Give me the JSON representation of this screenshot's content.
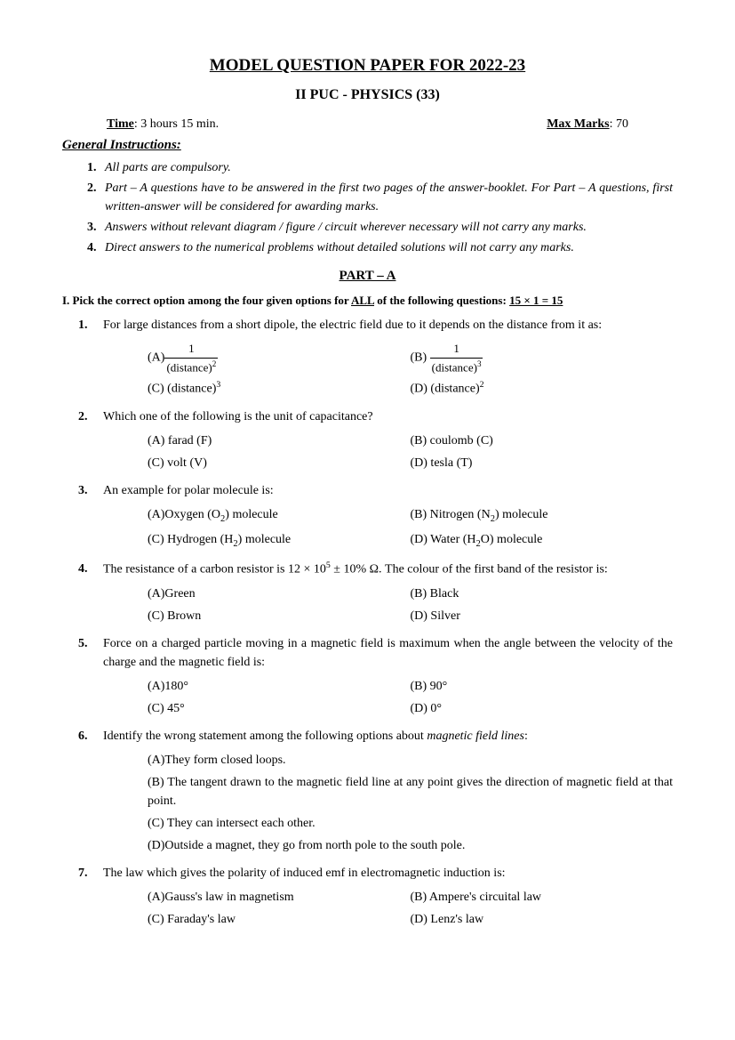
{
  "header": {
    "title": "MODEL QUESTION PAPER FOR  2022-23",
    "subtitle": "II PUC    -    PHYSICS (33)",
    "time_label": "Time",
    "time_value": ": 3 hours 15 min.",
    "marks_label": "Max Marks",
    "marks_value": ": 70"
  },
  "gen_inst_label": "General Instructions:",
  "instructions": [
    "All parts are compulsory.",
    "Part – A questions have to be answered in the first two pages of the answer-booklet. For Part – A questions, first written-answer will be considered for awarding marks.",
    "Answers without relevant diagram / figure / circuit wherever necessary will not carry any marks.",
    "Direct answers to the numerical problems without detailed solutions will not carry any marks."
  ],
  "part_label": "PART – A",
  "section_inst_prefix": "I.  Pick the correct option among the four given options for ",
  "section_inst_all": "ALL",
  "section_inst_mid": " of the following questions:  ",
  "section_inst_marks": "15 × 1 = 15",
  "questions": [
    {
      "num": "1.",
      "text": "For large distances from a short dipole, the electric field due to it depends on the distance from it as:",
      "opts": {
        "A_html": "(A)<span class='frac'><span class='num'>1</span><span class='den'>(distance)<sup>2</sup></span></span>",
        "B_html": "(B) <span class='frac'><span class='num'>1</span><span class='den'>(distance)<sup>3</sup></span></span>",
        "C_html": "(C) (distance)<sup>3</sup>",
        "D_html": "(D) (distance)<sup>2</sup>"
      }
    },
    {
      "num": "2.",
      "text": "Which one of the following is the unit of capacitance?",
      "opts": {
        "A": "(A) farad (F)",
        "B": "(B) coulomb (C)",
        "C": "(C) volt (V)",
        "D": "(D) tesla (T)"
      }
    },
    {
      "num": "3.",
      "text": "An example for polar molecule is:",
      "opts": {
        "A_html": "(A)Oxygen (O<sub>2</sub>) molecule",
        "B_html": "(B) Nitrogen (N<sub>2</sub>) molecule",
        "C_html": "(C) Hydrogen (H<sub>2</sub>) molecule",
        "D_html": "(D) Water (H<sub>2</sub>O) molecule"
      }
    },
    {
      "num": "4.",
      "text_html": "The resistance of a carbon resistor is 12 × 10<sup>5</sup> ± 10% Ω. The colour of the first band of the resistor is:",
      "opts": {
        "A": "(A)Green",
        "B": "(B) Black",
        "C": "(C) Brown",
        "D": "(D) Silver"
      }
    },
    {
      "num": "5.",
      "text": "Force on a charged particle moving in a magnetic field is maximum when the angle between the velocity of the charge and the magnetic field is:",
      "opts": {
        "A": "(A)180°",
        "B": "(B) 90°",
        "C": "(C) 45°",
        "D": "(D) 0°"
      }
    },
    {
      "num": "6.",
      "text_html": "Identify the wrong statement among the following options about <i>magnetic field lines</i>:",
      "full_opts": [
        "(A)They form closed loops.",
        "(B) The tangent drawn to the magnetic field line at any point gives the direction of magnetic field at that point.",
        "(C) They can intersect each other.",
        "(D)Outside a magnet, they go from north pole to the south pole."
      ]
    },
    {
      "num": "7.",
      "text": "The law which gives the polarity of induced emf in electromagnetic induction is:",
      "opts": {
        "A": "(A)Gauss's law in magnetism",
        "B": "(B) Ampere's circuital law",
        "C": "(C) Faraday's law",
        "D": "(D) Lenz's law"
      }
    }
  ]
}
